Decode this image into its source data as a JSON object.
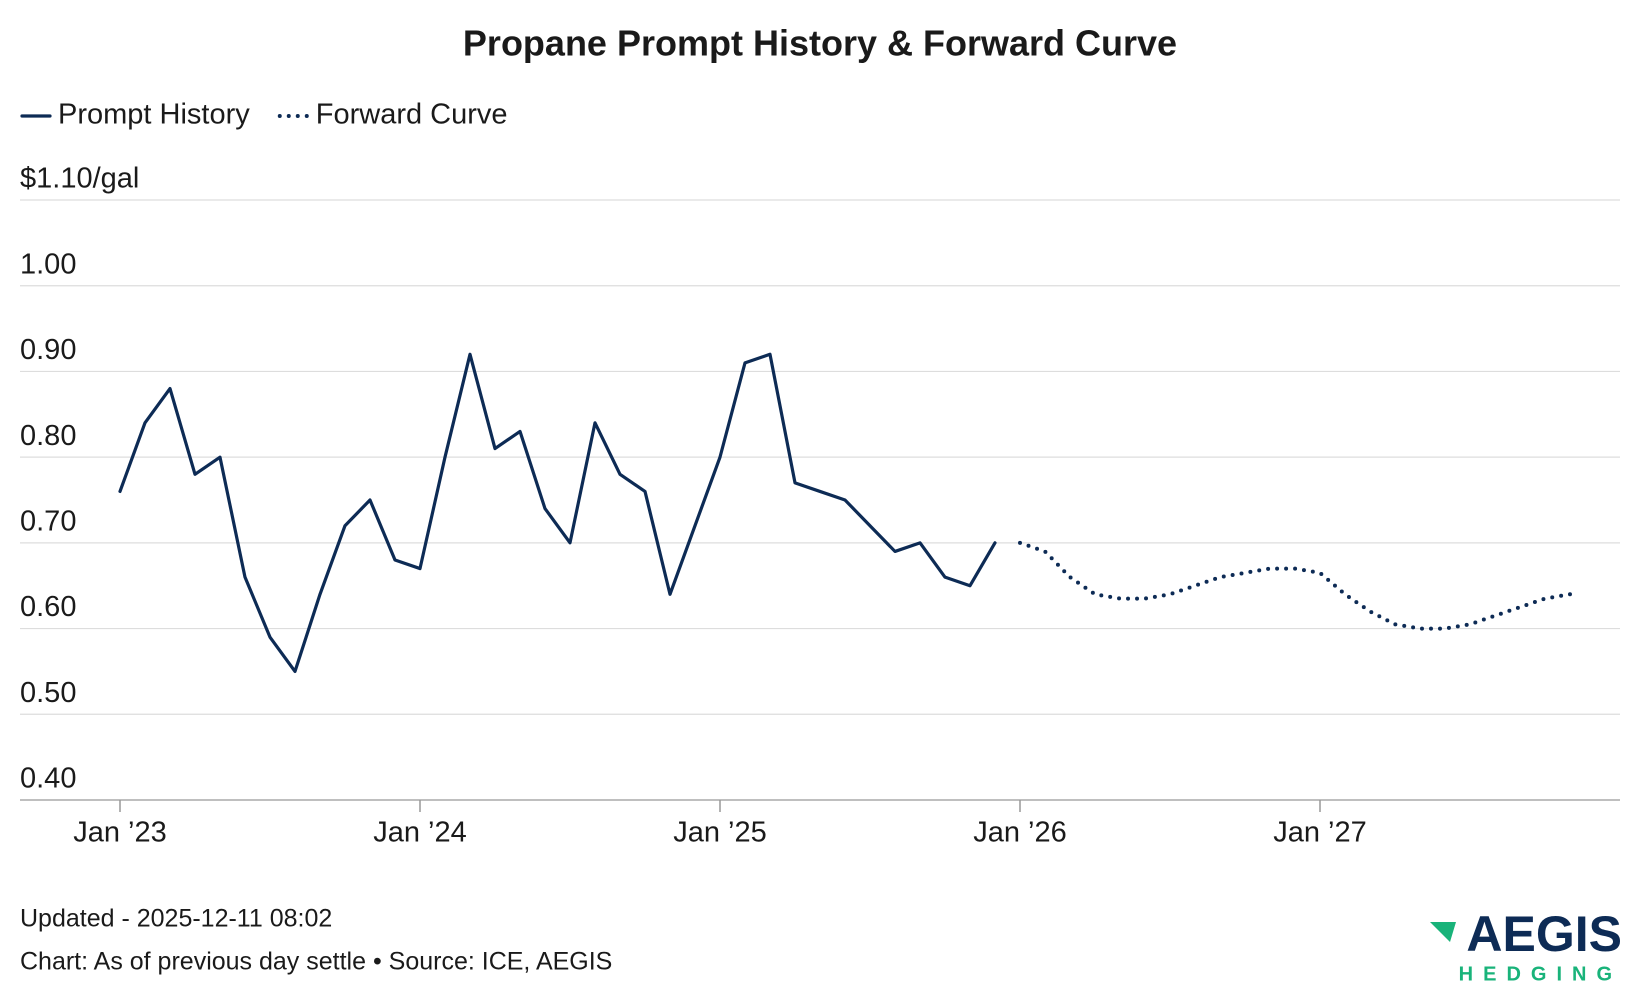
{
  "chart_data": {
    "type": "line",
    "title": "Propane Prompt History & Forward Curve",
    "series": [
      {
        "name": "Prompt History",
        "color": "#0d2b55",
        "style": "solid",
        "x": [
          "2023-01",
          "2023-02",
          "2023-03",
          "2023-04",
          "2023-05",
          "2023-06",
          "2023-07",
          "2023-08",
          "2023-09",
          "2023-10",
          "2023-11",
          "2023-12",
          "2024-01",
          "2024-02",
          "2024-03",
          "2024-04",
          "2024-05",
          "2024-06",
          "2024-07",
          "2024-08",
          "2024-09",
          "2024-10",
          "2024-11",
          "2024-12",
          "2025-01",
          "2025-02",
          "2025-03",
          "2025-04",
          "2025-05",
          "2025-06",
          "2025-07",
          "2025-08",
          "2025-09",
          "2025-10",
          "2025-11",
          "2025-12"
        ],
        "values": [
          0.76,
          0.84,
          0.88,
          0.78,
          0.8,
          0.66,
          0.59,
          0.55,
          0.64,
          0.72,
          0.75,
          0.68,
          0.67,
          0.8,
          0.92,
          0.81,
          0.83,
          0.74,
          0.7,
          0.84,
          0.78,
          0.76,
          0.64,
          0.72,
          0.8,
          0.91,
          0.92,
          0.77,
          0.76,
          0.75,
          0.72,
          0.69,
          0.7,
          0.66,
          0.65,
          0.7
        ]
      },
      {
        "name": "Forward Curve",
        "color": "#0d2b55",
        "style": "dotted",
        "x": [
          "2026-01",
          "2026-02",
          "2026-03",
          "2026-04",
          "2026-05",
          "2026-06",
          "2026-07",
          "2026-08",
          "2026-09",
          "2026-10",
          "2026-11",
          "2026-12",
          "2027-01",
          "2027-02",
          "2027-03",
          "2027-04",
          "2027-05",
          "2027-06",
          "2027-07",
          "2027-08",
          "2027-09",
          "2027-10",
          "2027-11"
        ],
        "values": [
          0.7,
          0.69,
          0.66,
          0.64,
          0.635,
          0.635,
          0.64,
          0.65,
          0.66,
          0.665,
          0.67,
          0.67,
          0.665,
          0.64,
          0.62,
          0.605,
          0.6,
          0.6,
          0.605,
          0.615,
          0.625,
          0.635,
          0.64
        ]
      }
    ],
    "xlim": [
      "2022-09",
      "2028-01"
    ],
    "xticks": [
      {
        "value": "2023-01",
        "label": "Jan ’23"
      },
      {
        "value": "2024-01",
        "label": "Jan ’24"
      },
      {
        "value": "2025-01",
        "label": "Jan ’25"
      },
      {
        "value": "2026-01",
        "label": "Jan ’26"
      },
      {
        "value": "2027-01",
        "label": "Jan ’27"
      }
    ],
    "ylim": [
      0.4,
      1.1
    ],
    "yticks": [
      {
        "value": 0.4,
        "label": "0.40"
      },
      {
        "value": 0.5,
        "label": "0.50"
      },
      {
        "value": 0.6,
        "label": "0.60"
      },
      {
        "value": 0.7,
        "label": "0.70"
      },
      {
        "value": 0.8,
        "label": "0.80"
      },
      {
        "value": 0.9,
        "label": "0.90"
      },
      {
        "value": 1.0,
        "label": "1.00"
      },
      {
        "value": 1.1,
        "label": "$1.10/gal"
      }
    ],
    "grid": true,
    "legend": "top-left"
  },
  "footer": {
    "updated": "Updated - 2025-12-11 08:02",
    "source": "Chart: As of previous day settle • Source: ICE, AEGIS"
  },
  "logo": {
    "name": "AEGIS",
    "tagline": "HEDGING"
  }
}
